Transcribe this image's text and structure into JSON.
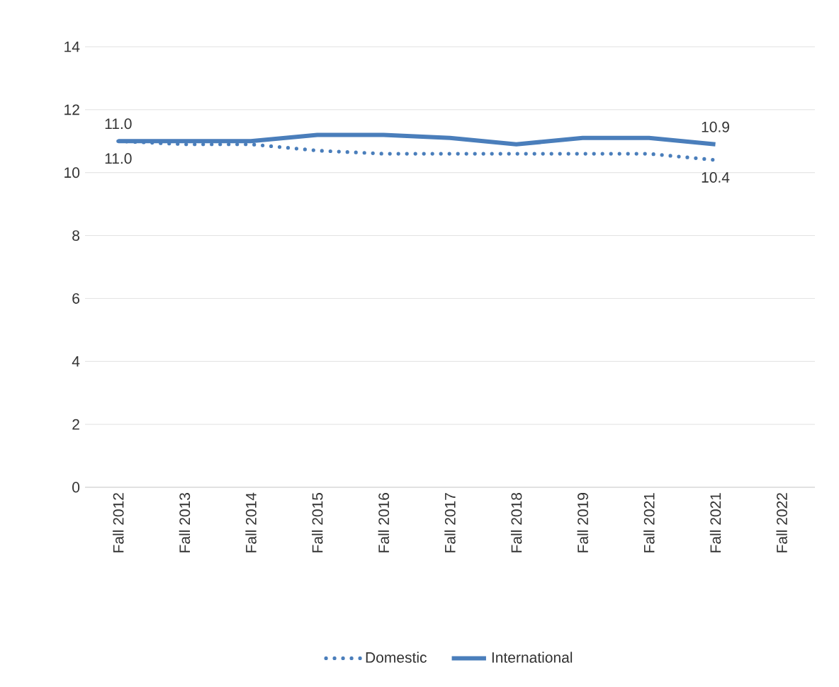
{
  "chart_data": {
    "type": "line",
    "categories": [
      "Fall 2012",
      "Fall 2013",
      "Fall 2014",
      "Fall 2015",
      "Fall 2016",
      "Fall 2017",
      "Fall 2018",
      "Fall 2019",
      "Fall 2021",
      "Fall 2021",
      "Fall 2022"
    ],
    "series": [
      {
        "name": "Domestic",
        "color": "#4a7ebb",
        "line_style": "dotted",
        "values": [
          11.0,
          10.9,
          10.9,
          10.7,
          10.6,
          10.6,
          10.6,
          10.6,
          10.6,
          10.4,
          null
        ],
        "value_labels": [
          "11.0",
          null,
          null,
          null,
          null,
          null,
          null,
          null,
          null,
          "10.4",
          null
        ]
      },
      {
        "name": "International",
        "color": "#4a7ebb",
        "line_style": "solid",
        "values": [
          11.0,
          11.0,
          11.0,
          11.2,
          11.2,
          11.1,
          10.9,
          11.1,
          11.1,
          10.9,
          null
        ],
        "value_labels": [
          "11.0",
          null,
          null,
          null,
          null,
          null,
          null,
          null,
          null,
          "10.9",
          null
        ]
      }
    ],
    "ylim": [
      0,
      14
    ],
    "yticks": [
      0,
      2,
      4,
      6,
      8,
      10,
      12,
      14
    ],
    "grid": "y",
    "legend": "bottom",
    "marker": "none"
  }
}
